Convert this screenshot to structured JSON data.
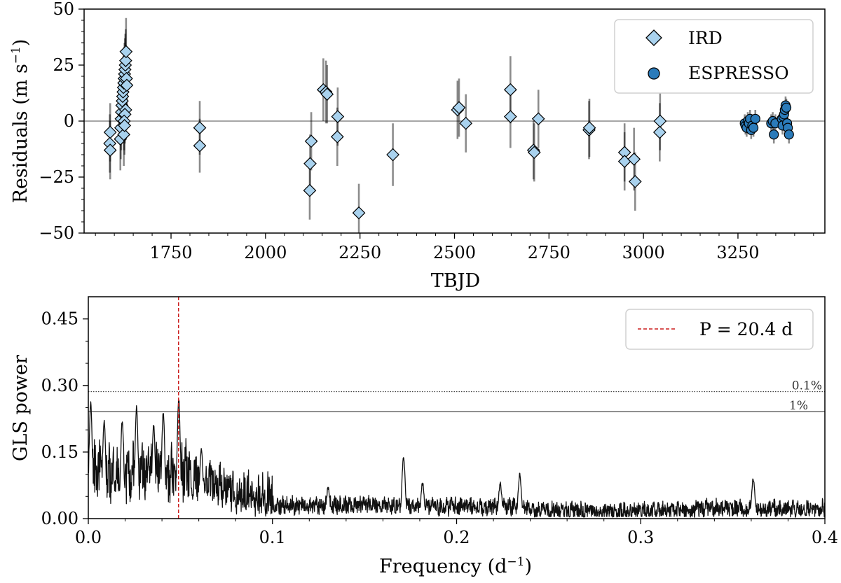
{
  "chart_data": [
    {
      "type": "scatter",
      "xlabel": "TBJD",
      "ylabel": "Residuals (m s",
      "ylabel_sup": "−1",
      "ylabel_close": ")",
      "xlim": [
        1520,
        3480
      ],
      "ylim": [
        -50,
        50
      ],
      "xticks": [
        1750,
        2000,
        2250,
        2500,
        2750,
        3000,
        3250
      ],
      "xtick_labels": [
        "1750",
        "2000",
        "2250",
        "2500",
        "2750",
        "3000",
        "3250"
      ],
      "yticks": [
        -50,
        -25,
        0,
        25,
        50
      ],
      "ytick_labels": [
        "−50",
        "−25",
        "0",
        "25",
        "50"
      ],
      "zero_line": true,
      "legend_position": "top-right",
      "colors": {
        "IRD": "#a9d2ee",
        "ESPRESSO": "#2b7bba"
      },
      "series": [
        {
          "name": "IRD",
          "marker": "diamond",
          "points": [
            [
              1589,
              -5,
              13
            ],
            [
              1588,
              -10,
              13
            ],
            [
              1589,
              -13,
              13
            ],
            [
              1616,
              -8,
              14
            ],
            [
              1617,
              -3,
              14
            ],
            [
              1618,
              1,
              14
            ],
            [
              1619,
              4,
              14
            ],
            [
              1620,
              7,
              14
            ],
            [
              1621,
              9,
              14
            ],
            [
              1622,
              11,
              14
            ],
            [
              1623,
              13,
              14
            ],
            [
              1624,
              15,
              14
            ],
            [
              1625,
              17,
              14
            ],
            [
              1626,
              19,
              14
            ],
            [
              1627,
              21,
              14
            ],
            [
              1628,
              23,
              14
            ],
            [
              1629,
              25,
              14
            ],
            [
              1630,
              27,
              14
            ],
            [
              1631,
              31,
              15
            ],
            [
              1632,
              19,
              14
            ],
            [
              1633,
              16,
              14
            ],
            [
              1630,
              5,
              13
            ],
            [
              1628,
              3,
              13
            ],
            [
              1626,
              0,
              13
            ],
            [
              1625,
              -6,
              14
            ],
            [
              1627,
              -2,
              13
            ],
            [
              1826,
              -3,
              12
            ],
            [
              1826,
              -11,
              12
            ],
            [
              2121,
              -9,
              13
            ],
            [
              2118,
              -19,
              13
            ],
            [
              2117,
              -31,
              13
            ],
            [
              2153,
              14,
              14
            ],
            [
              2160,
              13,
              14
            ],
            [
              2163,
              12,
              13
            ],
            [
              2191,
              2,
              13
            ],
            [
              2190,
              -7,
              13
            ],
            [
              2247,
              -41,
              13
            ],
            [
              2337,
              -15,
              14
            ],
            [
              2508,
              5,
              13
            ],
            [
              2512,
              6,
              13
            ],
            [
              2530,
              -1,
              13
            ],
            [
              2648,
              14,
              15
            ],
            [
              2648,
              2,
              14
            ],
            [
              2709,
              -13,
              13
            ],
            [
              2711,
              -14,
              13
            ],
            [
              2722,
              1,
              13
            ],
            [
              2856,
              -4,
              13
            ],
            [
              2857,
              -3,
              13
            ],
            [
              2950,
              -14,
              13
            ],
            [
              2950,
              -18,
              13
            ],
            [
              2975,
              -17,
              14
            ],
            [
              2978,
              -27,
              13
            ],
            [
              3043,
              -5,
              13
            ],
            [
              3044,
              0,
              13
            ]
          ]
        },
        {
          "name": "ESPRESSO",
          "marker": "circle",
          "points": [
            [
              3268,
              -1,
              4
            ],
            [
              3270,
              -2,
              4
            ],
            [
              3273,
              -3,
              4
            ],
            [
              3276,
              0,
              4
            ],
            [
              3279,
              -1,
              4
            ],
            [
              3282,
              1,
              4
            ],
            [
              3285,
              -4,
              4
            ],
            [
              3288,
              -2,
              4
            ],
            [
              3291,
              -3,
              4
            ],
            [
              3296,
              1,
              4
            ],
            [
              3338,
              -1,
              4
            ],
            [
              3342,
              0,
              4
            ],
            [
              3345,
              -6,
              4
            ],
            [
              3349,
              -1,
              4
            ],
            [
              3366,
              1,
              4
            ],
            [
              3368,
              -2,
              4
            ],
            [
              3370,
              2,
              4
            ],
            [
              3372,
              3,
              4
            ],
            [
              3374,
              5,
              4
            ],
            [
              3376,
              7,
              4
            ],
            [
              3378,
              6,
              4
            ],
            [
              3380,
              -1,
              4
            ],
            [
              3382,
              -3,
              4
            ],
            [
              3385,
              -6,
              4
            ]
          ]
        }
      ]
    },
    {
      "type": "line",
      "xlabel": "Frequency (d",
      "xlabel_sup": "−1",
      "xlabel_close": ")",
      "ylabel": "GLS power",
      "xlim": [
        0.0,
        0.4
      ],
      "ylim": [
        0.0,
        0.5
      ],
      "xticks": [
        0.0,
        0.1,
        0.2,
        0.3,
        0.4
      ],
      "xtick_labels": [
        "0.0",
        "0.1",
        "0.2",
        "0.3",
        "0.4"
      ],
      "yticks": [
        0.0,
        0.15,
        0.3,
        0.45
      ],
      "ytick_labels": [
        "0.00",
        "0.15",
        "0.30",
        "0.45"
      ],
      "legend_position": "top-right",
      "colors": {
        "periodogram": "#111111",
        "period_marker": "#cc1f1f"
      },
      "series": [
        {
          "name": "",
          "x_range": [
            0.0,
            0.4
          ],
          "samples": 2400
        }
      ],
      "peaks": [
        [
          0.0013,
          0.26
        ],
        [
          0.0086,
          0.22
        ],
        [
          0.0184,
          0.22
        ],
        [
          0.0262,
          0.25
        ],
        [
          0.0355,
          0.21
        ],
        [
          0.0407,
          0.24
        ],
        [
          0.0491,
          0.27
        ],
        [
          0.0614,
          0.16
        ],
        [
          0.1302,
          0.07
        ],
        [
          0.1712,
          0.14
        ],
        [
          0.1815,
          0.08
        ],
        [
          0.2237,
          0.08
        ],
        [
          0.2343,
          0.1
        ],
        [
          0.3611,
          0.09
        ]
      ],
      "period_marker": {
        "x": 0.049,
        "label": "P = 20.4 d"
      },
      "thresholds": [
        {
          "level": 0.286,
          "label": "0.1%",
          "style": "dotted"
        },
        {
          "level": 0.241,
          "label": "1%",
          "style": "solid"
        }
      ]
    }
  ]
}
